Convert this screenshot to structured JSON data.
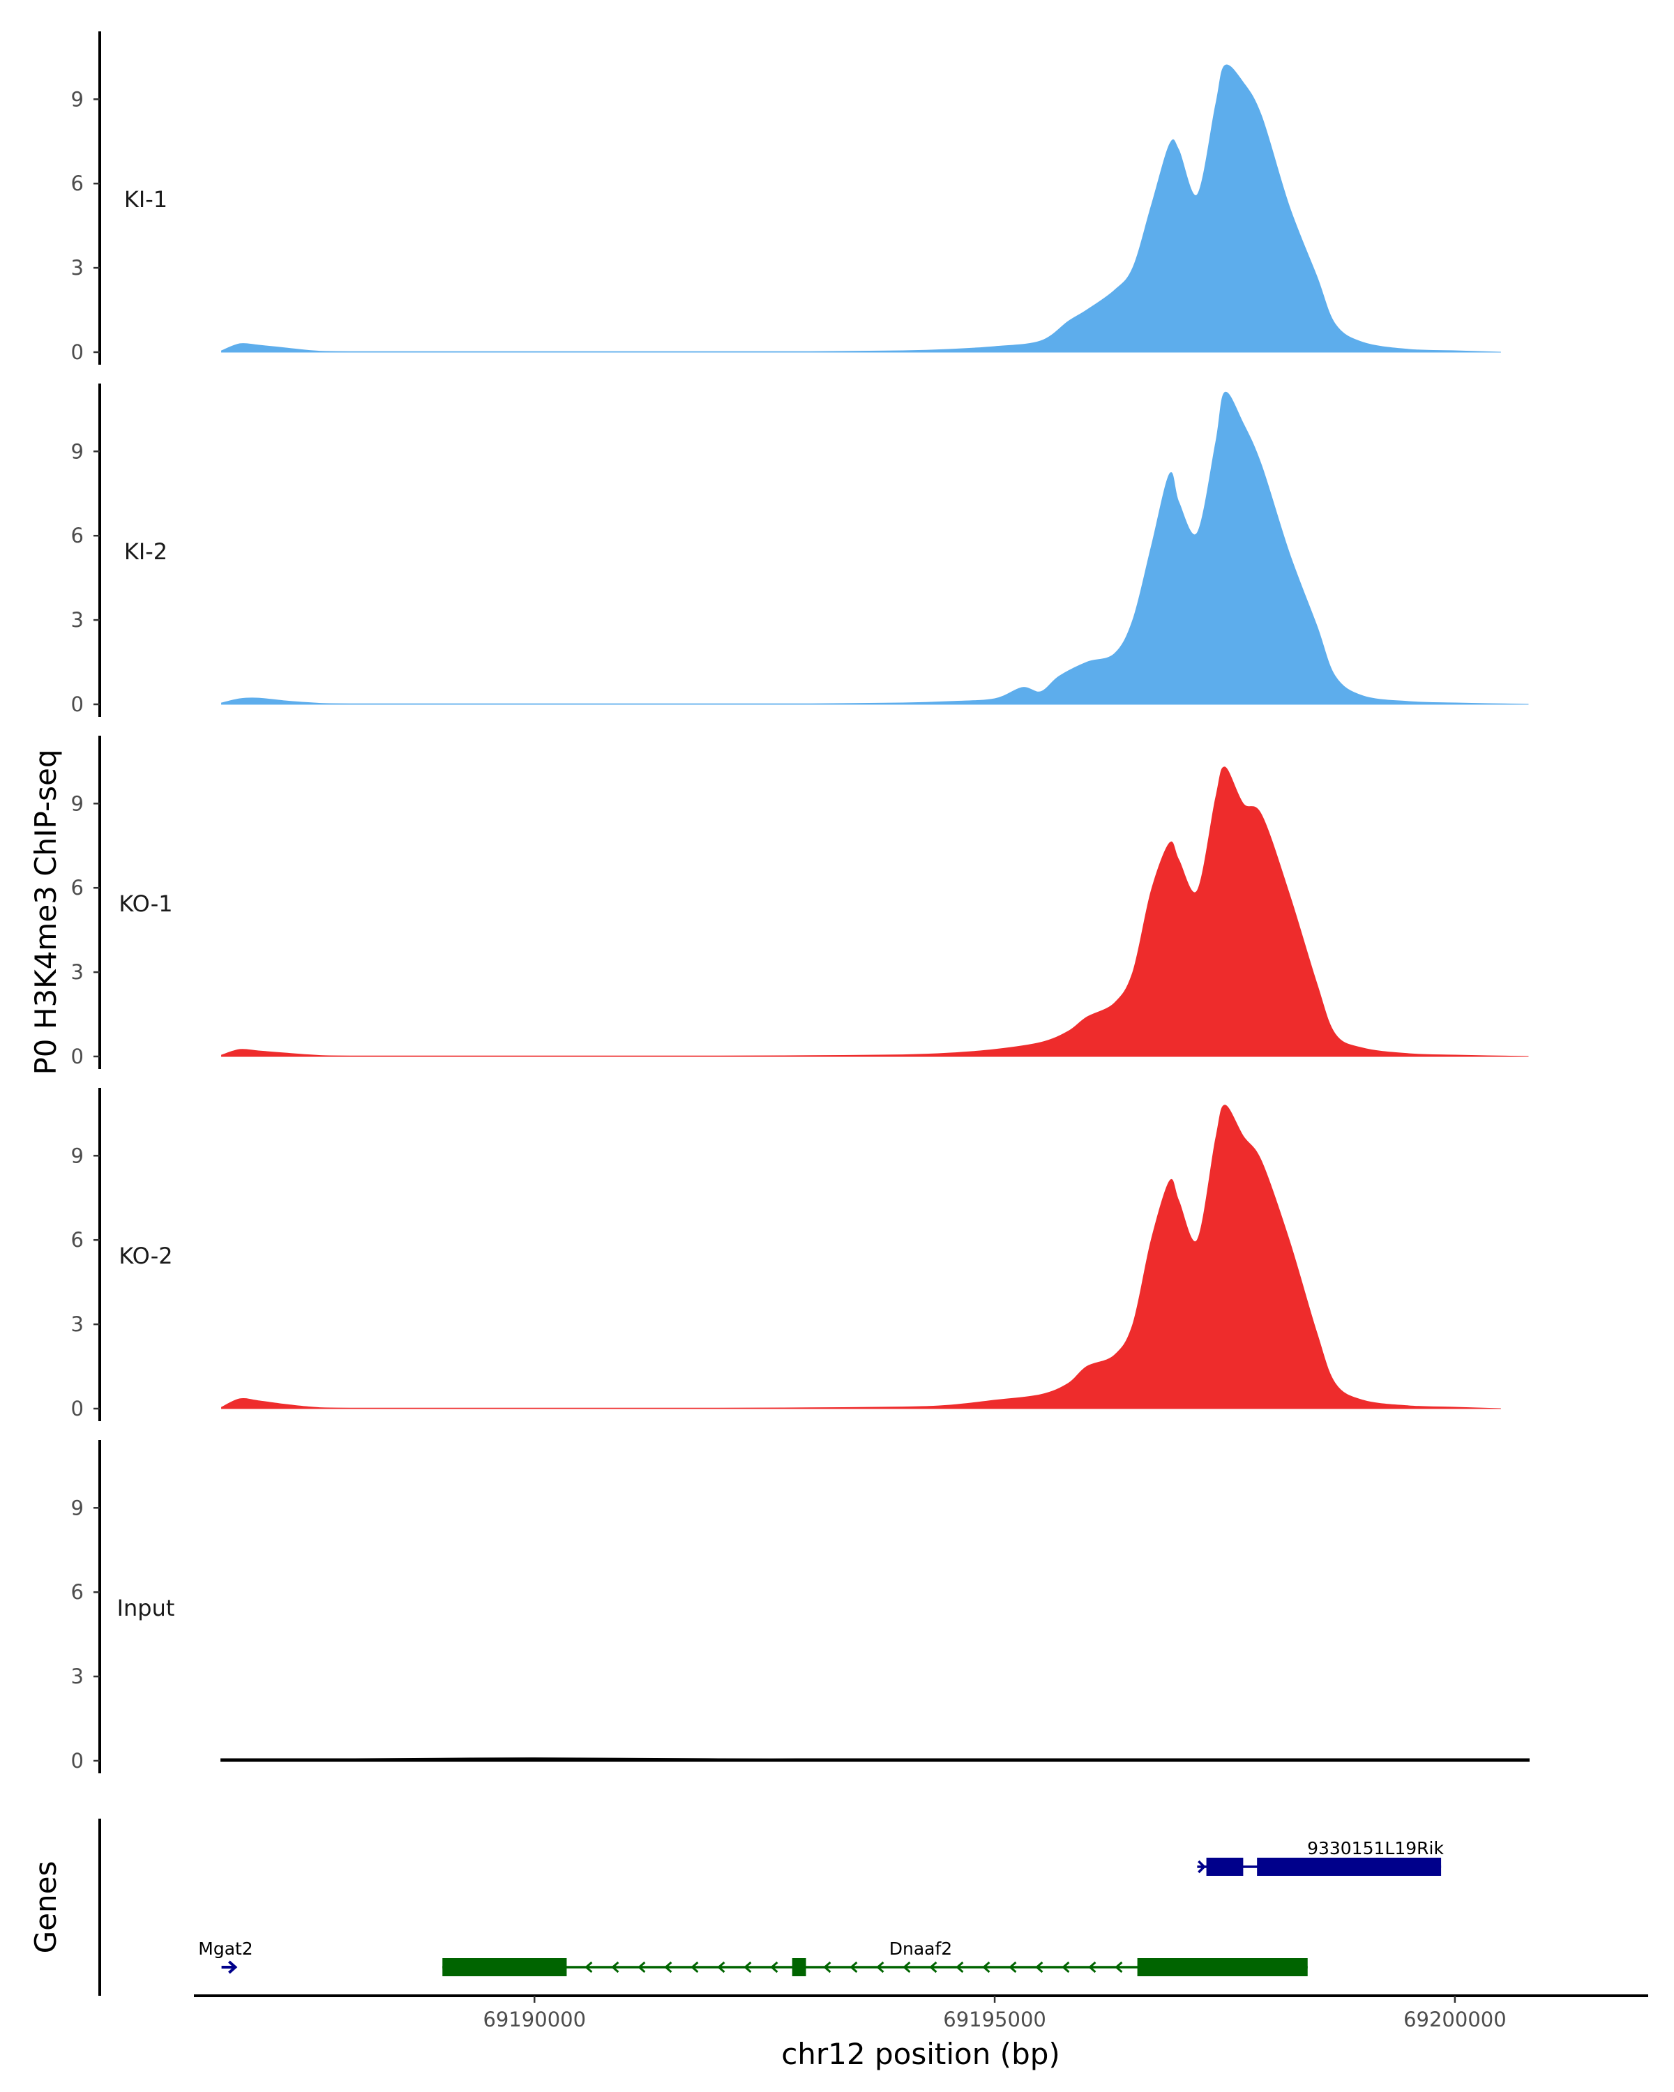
{
  "chart_data": {
    "type": "area",
    "ylabel": "P0 H3K4me3 ChIP-seq",
    "xlabel": "chr12 position (bp)",
    "xlim": [
      69186300,
      69202100
    ],
    "ylim": [
      0,
      11.5
    ],
    "x_ticks": [
      69190000,
      69195000,
      69200000
    ],
    "x_tick_labels": [
      "69190000",
      "69195000",
      "69200000"
    ],
    "y_ticks": [
      0,
      3,
      6,
      9
    ],
    "y_tick_labels": [
      "0",
      "3",
      "6",
      "9"
    ],
    "tracks": [
      {
        "name": "KI-1",
        "color": "#5DADEC",
        "x": [
          69186600,
          69186800,
          69187000,
          69187300,
          69187600,
          69188000,
          69190000,
          69192000,
          69193000,
          69194000,
          69194500,
          69195000,
          69195500,
          69195800,
          69196000,
          69196300,
          69196500,
          69196700,
          69196900,
          69197000,
          69197200,
          69197400,
          69197500,
          69197700,
          69197900,
          69198200,
          69198500,
          69198700,
          69199000,
          69199500,
          69200000,
          69200500
        ],
        "values": [
          0.05,
          0.3,
          0.25,
          0.15,
          0.05,
          0.02,
          0.02,
          0.02,
          0.02,
          0.05,
          0.1,
          0.2,
          0.4,
          1.1,
          1.5,
          2.2,
          3.0,
          5.2,
          7.4,
          7.2,
          5.6,
          8.8,
          10.2,
          9.6,
          8.4,
          5.2,
          2.7,
          1.0,
          0.35,
          0.1,
          0.05,
          0.0
        ]
      },
      {
        "name": "KI-2",
        "color": "#5DADEC",
        "x": [
          69186600,
          69186800,
          69187000,
          69187300,
          69187600,
          69188000,
          69190000,
          69192000,
          69193000,
          69194000,
          69194500,
          69195000,
          69195300,
          69195500,
          69195700,
          69196000,
          69196300,
          69196500,
          69196700,
          69196900,
          69197000,
          69197200,
          69197400,
          69197500,
          69197700,
          69197900,
          69198200,
          69198500,
          69198700,
          69199000,
          69199500,
          69200000,
          69200800
        ],
        "values": [
          0.05,
          0.2,
          0.22,
          0.12,
          0.05,
          0.02,
          0.02,
          0.02,
          0.02,
          0.05,
          0.1,
          0.2,
          0.6,
          0.45,
          1.0,
          1.5,
          1.8,
          3.0,
          5.6,
          8.2,
          7.2,
          6.1,
          9.3,
          11.1,
          10.0,
          8.5,
          5.4,
          2.8,
          1.0,
          0.3,
          0.1,
          0.05,
          0.0
        ]
      },
      {
        "name": "KO-1",
        "color": "#EE2C2C",
        "x": [
          69186600,
          69186800,
          69187000,
          69187300,
          69187600,
          69188000,
          69190000,
          69192000,
          69193000,
          69194000,
          69194500,
          69195000,
          69195500,
          69195800,
          69196000,
          69196300,
          69196500,
          69196700,
          69196900,
          69197000,
          69197200,
          69197400,
          69197500,
          69197700,
          69197900,
          69198200,
          69198500,
          69198700,
          69199000,
          69199500,
          69200000,
          69200800
        ],
        "values": [
          0.05,
          0.25,
          0.2,
          0.12,
          0.05,
          0.02,
          0.02,
          0.02,
          0.03,
          0.06,
          0.12,
          0.25,
          0.5,
          0.9,
          1.4,
          1.9,
          3.0,
          5.9,
          7.6,
          7.0,
          5.9,
          9.2,
          10.3,
          9.0,
          8.6,
          5.8,
          2.6,
          0.8,
          0.3,
          0.1,
          0.05,
          0.0
        ]
      },
      {
        "name": "KO-2",
        "color": "#EE2C2C",
        "x": [
          69186600,
          69186800,
          69187000,
          69187300,
          69187600,
          69188000,
          69190000,
          69192000,
          69193000,
          69194000,
          69194500,
          69195000,
          69195500,
          69195800,
          69196000,
          69196300,
          69196500,
          69196700,
          69196900,
          69197000,
          69197200,
          69197400,
          69197500,
          69197700,
          69197900,
          69198200,
          69198500,
          69198700,
          69199000,
          69199500,
          69200000,
          69200500
        ],
        "values": [
          0.05,
          0.35,
          0.28,
          0.15,
          0.05,
          0.02,
          0.02,
          0.02,
          0.03,
          0.06,
          0.12,
          0.3,
          0.5,
          0.9,
          1.5,
          1.9,
          3.0,
          6.0,
          8.1,
          7.4,
          6.0,
          9.6,
          10.8,
          9.7,
          8.8,
          6.0,
          2.7,
          0.9,
          0.3,
          0.1,
          0.05,
          0.0
        ]
      },
      {
        "name": "Input",
        "color": "#000000",
        "x": [
          69186600,
          69188000,
          69190000,
          69192000,
          69194000,
          69196000,
          69198000,
          69200000,
          69200800
        ],
        "values": [
          0.05,
          0.05,
          0.08,
          0.05,
          0.05,
          0.05,
          0.05,
          0.05,
          0.05
        ]
      }
    ],
    "gene_track": {
      "title": "Genes",
      "genes": [
        {
          "name": "Mgat2",
          "strand": "+",
          "color": "#00008B",
          "start": 69186600,
          "end": 69186750,
          "exons": []
        },
        {
          "name": "Dnaaf2",
          "strand": "-",
          "color": "#006400",
          "start": 69189000,
          "end": 69198400,
          "exons": [
            [
              69189000,
              69190350
            ],
            [
              69192800,
              69192950
            ],
            [
              69196550,
              69198400
            ]
          ]
        },
        {
          "name": "9330151L19Rik",
          "strand": "+",
          "color": "#00008B",
          "start": 69197200,
          "end": 69199850,
          "exons": [
            [
              69197300,
              69197700
            ],
            [
              69197850,
              69199850
            ]
          ]
        }
      ]
    }
  }
}
